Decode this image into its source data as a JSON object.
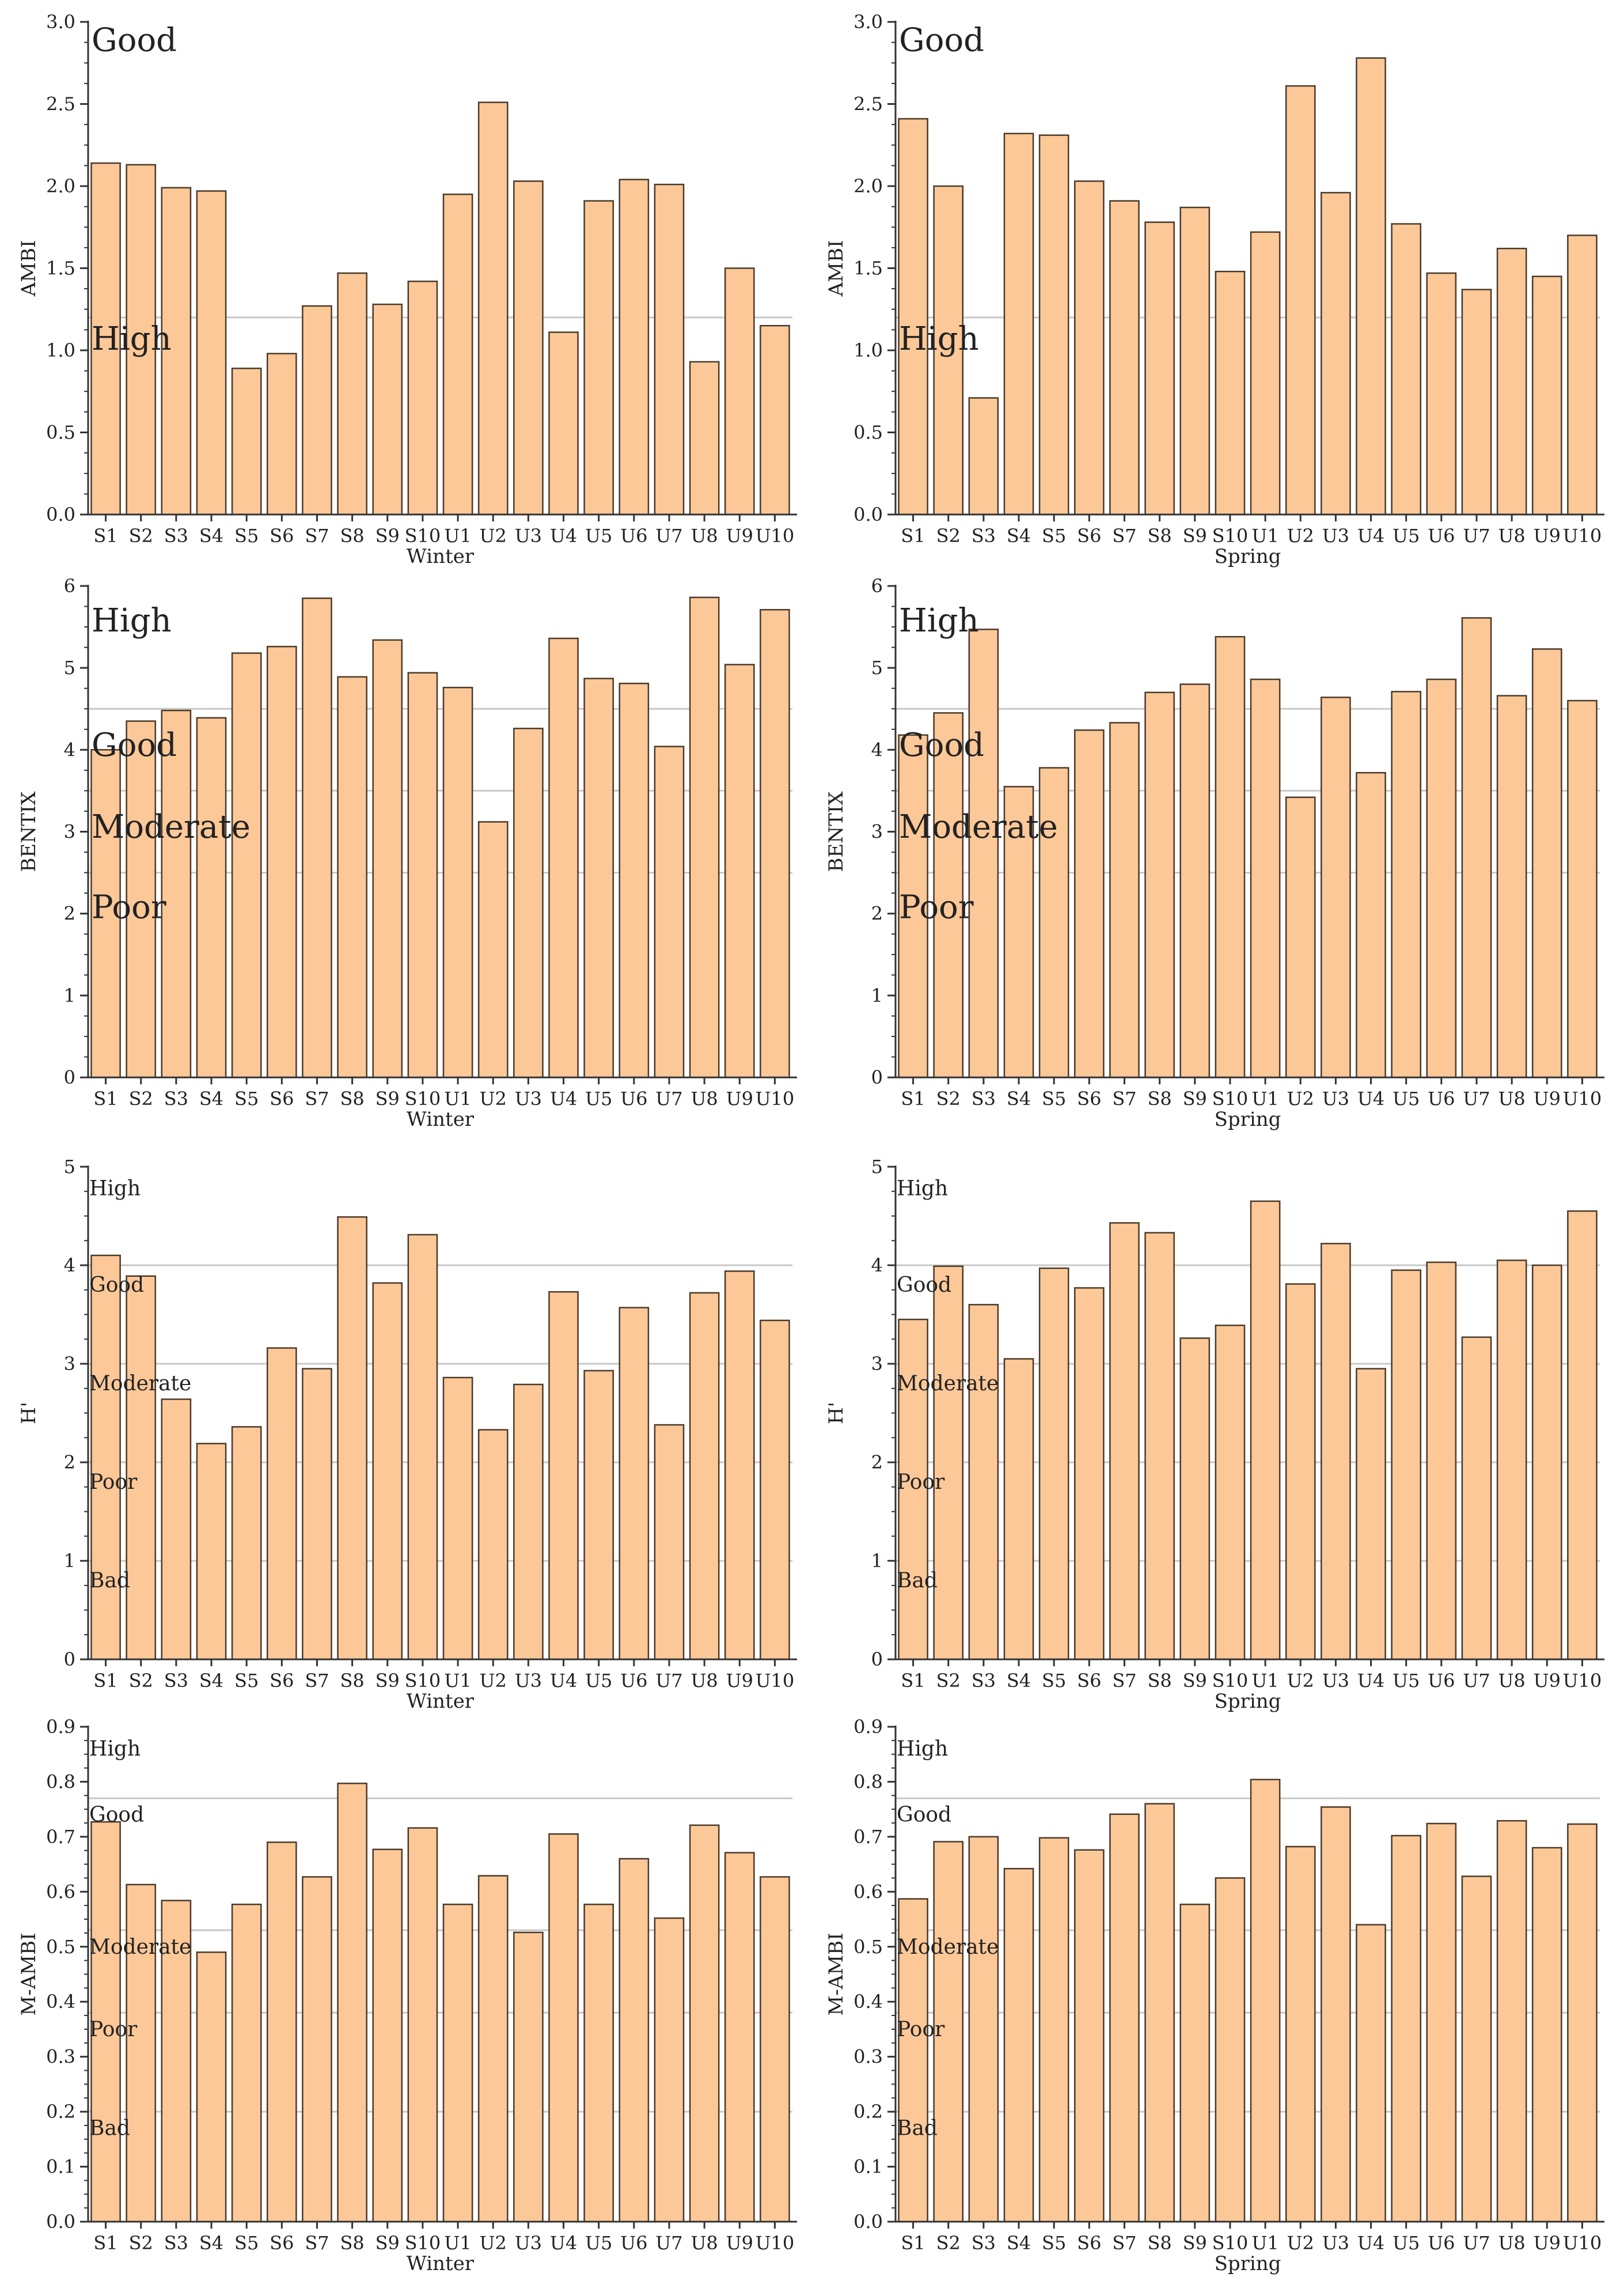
{
  "colors": {
    "bar_fill": "#fcc898",
    "bar_stroke": "#4a3a2a",
    "axis": "#333333",
    "threshold_line": "#c8c8c8",
    "text": "#222222"
  },
  "chart_data": [
    {
      "type": "bar",
      "id": "ambi-winter",
      "ylabel": "AMBI",
      "xlabel": "Winter",
      "ylim": [
        0,
        3
      ],
      "yticks": [
        "0.0",
        "0.5",
        "1.0",
        "1.5",
        "2.0",
        "2.5",
        "3.0"
      ],
      "categories": [
        "S1",
        "S2",
        "S3",
        "S4",
        "S5",
        "S6",
        "S7",
        "S8",
        "S9",
        "S10",
        "U1",
        "U2",
        "U3",
        "U4",
        "U5",
        "U6",
        "U7",
        "U8",
        "U9",
        "U10"
      ],
      "values": [
        2.14,
        2.13,
        1.99,
        1.97,
        0.89,
        0.98,
        1.27,
        1.47,
        1.28,
        1.42,
        1.95,
        2.51,
        2.03,
        1.11,
        1.91,
        2.04,
        2.01,
        0.93,
        1.5,
        1.15
      ],
      "thresholds": [
        1.2
      ],
      "bands": [
        {
          "label": "Good",
          "value": 2.9,
          "size": "large"
        },
        {
          "label": "High",
          "value": 1.08,
          "size": "large"
        }
      ]
    },
    {
      "type": "bar",
      "id": "ambi-spring",
      "ylabel": "AMBI",
      "xlabel": "Spring",
      "ylim": [
        0,
        3
      ],
      "yticks": [
        "0.0",
        "0.5",
        "1.0",
        "1.5",
        "2.0",
        "2.5",
        "3.0"
      ],
      "categories": [
        "S1",
        "S2",
        "S3",
        "S4",
        "S5",
        "S6",
        "S7",
        "S8",
        "S9",
        "S10",
        "U1",
        "U2",
        "U3",
        "U4",
        "U5",
        "U6",
        "U7",
        "U8",
        "U9",
        "U10"
      ],
      "values": [
        2.41,
        2.0,
        0.71,
        2.32,
        2.31,
        2.03,
        1.91,
        1.78,
        1.87,
        1.48,
        1.72,
        2.61,
        1.96,
        2.78,
        1.77,
        1.47,
        1.37,
        1.62,
        1.45,
        1.7
      ],
      "thresholds": [
        1.2
      ],
      "bands": [
        {
          "label": "Good",
          "value": 2.9,
          "size": "large"
        },
        {
          "label": "High",
          "value": 1.08,
          "size": "large"
        }
      ]
    },
    {
      "type": "bar",
      "id": "bentix-winter",
      "ylabel": "BENTIX",
      "xlabel": "Winter",
      "ylim": [
        0,
        6
      ],
      "yticks": [
        "0",
        "1",
        "2",
        "3",
        "4",
        "5",
        "6"
      ],
      "categories": [
        "S1",
        "S2",
        "S3",
        "S4",
        "S5",
        "S6",
        "S7",
        "S8",
        "S9",
        "S10",
        "U1",
        "U2",
        "U3",
        "U4",
        "U5",
        "U6",
        "U7",
        "U8",
        "U9",
        "U10"
      ],
      "values": [
        4.0,
        4.35,
        4.48,
        4.39,
        5.18,
        5.26,
        5.85,
        4.89,
        5.34,
        4.94,
        4.76,
        3.12,
        4.26,
        5.36,
        4.87,
        4.81,
        4.04,
        5.86,
        5.04,
        5.71
      ],
      "thresholds": [
        4.5,
        3.5,
        2.5
      ],
      "bands": [
        {
          "label": "High",
          "value": 5.6,
          "size": "large"
        },
        {
          "label": "Good",
          "value": 4.08,
          "size": "large"
        },
        {
          "label": "Moderate",
          "value": 3.08,
          "size": "large"
        },
        {
          "label": "Poor",
          "value": 2.1,
          "size": "large"
        }
      ]
    },
    {
      "type": "bar",
      "id": "bentix-spring",
      "ylabel": "BENTIX",
      "xlabel": "Spring",
      "ylim": [
        0,
        6
      ],
      "yticks": [
        "0",
        "1",
        "2",
        "3",
        "4",
        "5",
        "6"
      ],
      "categories": [
        "S1",
        "S2",
        "S3",
        "S4",
        "S5",
        "S6",
        "S7",
        "S8",
        "S9",
        "S10",
        "U1",
        "U2",
        "U3",
        "U4",
        "U5",
        "U6",
        "U7",
        "U8",
        "U9",
        "U10"
      ],
      "values": [
        4.18,
        4.45,
        5.47,
        3.55,
        3.78,
        4.24,
        4.33,
        4.7,
        4.8,
        5.38,
        4.86,
        3.42,
        4.64,
        3.72,
        4.71,
        4.86,
        5.61,
        4.66,
        5.23,
        4.6
      ],
      "thresholds": [
        4.5,
        3.5,
        2.5
      ],
      "bands": [
        {
          "label": "High",
          "value": 5.6,
          "size": "large"
        },
        {
          "label": "Good",
          "value": 4.08,
          "size": "large"
        },
        {
          "label": "Moderate",
          "value": 3.08,
          "size": "large"
        },
        {
          "label": "Poor",
          "value": 2.1,
          "size": "large"
        }
      ]
    },
    {
      "type": "bar",
      "id": "h-winter",
      "ylabel": "H'",
      "xlabel": "Winter",
      "ylim": [
        0,
        5
      ],
      "yticks": [
        "0",
        "1",
        "2",
        "3",
        "4",
        "5"
      ],
      "categories": [
        "S1",
        "S2",
        "S3",
        "S4",
        "S5",
        "S6",
        "S7",
        "S8",
        "S9",
        "S10",
        "U1",
        "U2",
        "U3",
        "U4",
        "U5",
        "U6",
        "U7",
        "U8",
        "U9",
        "U10"
      ],
      "values": [
        4.1,
        3.89,
        2.64,
        2.19,
        2.36,
        3.16,
        2.95,
        4.49,
        3.82,
        4.31,
        2.86,
        2.33,
        2.79,
        3.73,
        2.93,
        3.57,
        2.38,
        3.72,
        3.94,
        3.44
      ],
      "thresholds": [
        4,
        3,
        2,
        1
      ],
      "bands": [
        {
          "label": "High",
          "value": 4.78,
          "size": "small"
        },
        {
          "label": "Good",
          "value": 3.8,
          "size": "small"
        },
        {
          "label": "Moderate",
          "value": 2.8,
          "size": "small"
        },
        {
          "label": "Poor",
          "value": 1.8,
          "size": "small"
        },
        {
          "label": "Bad",
          "value": 0.8,
          "size": "small"
        }
      ]
    },
    {
      "type": "bar",
      "id": "h-spring",
      "ylabel": "H'",
      "xlabel": "Spring",
      "ylim": [
        0,
        5
      ],
      "yticks": [
        "0",
        "1",
        "2",
        "3",
        "4",
        "5"
      ],
      "categories": [
        "S1",
        "S2",
        "S3",
        "S4",
        "S5",
        "S6",
        "S7",
        "S8",
        "S9",
        "S10",
        "U1",
        "U2",
        "U3",
        "U4",
        "U5",
        "U6",
        "U7",
        "U8",
        "U9",
        "U10"
      ],
      "values": [
        3.45,
        3.99,
        3.6,
        3.05,
        3.97,
        3.77,
        4.43,
        4.33,
        3.26,
        3.39,
        4.65,
        3.81,
        4.22,
        2.95,
        3.95,
        4.03,
        3.27,
        4.05,
        4.0,
        4.55
      ],
      "thresholds": [
        4,
        3,
        2,
        1
      ],
      "bands": [
        {
          "label": "High",
          "value": 4.78,
          "size": "small"
        },
        {
          "label": "Good",
          "value": 3.8,
          "size": "small"
        },
        {
          "label": "Moderate",
          "value": 2.8,
          "size": "small"
        },
        {
          "label": "Poor",
          "value": 1.8,
          "size": "small"
        },
        {
          "label": "Bad",
          "value": 0.8,
          "size": "small"
        }
      ]
    },
    {
      "type": "bar",
      "id": "mambi-winter",
      "ylabel": "M-AMBI",
      "xlabel": "Winter",
      "ylim": [
        0,
        0.9
      ],
      "yticks": [
        "0.0",
        "0.1",
        "0.2",
        "0.3",
        "0.4",
        "0.5",
        "0.6",
        "0.7",
        "0.8",
        "0.9"
      ],
      "categories": [
        "S1",
        "S2",
        "S3",
        "S4",
        "S5",
        "S6",
        "S7",
        "S8",
        "S9",
        "S10",
        "U1",
        "U2",
        "U3",
        "U4",
        "U5",
        "U6",
        "U7",
        "U8",
        "U9",
        "U10"
      ],
      "values": [
        0.727,
        0.613,
        0.584,
        0.49,
        0.577,
        0.69,
        0.627,
        0.797,
        0.677,
        0.716,
        0.577,
        0.629,
        0.526,
        0.705,
        0.577,
        0.66,
        0.552,
        0.721,
        0.671,
        0.627
      ],
      "thresholds": [
        0.77,
        0.53,
        0.38,
        0.2
      ],
      "bands": [
        {
          "label": "High",
          "value": 0.86,
          "size": "small"
        },
        {
          "label": "Good",
          "value": 0.74,
          "size": "small"
        },
        {
          "label": "Moderate",
          "value": 0.5,
          "size": "small"
        },
        {
          "label": "Poor",
          "value": 0.35,
          "size": "small"
        },
        {
          "label": "Bad",
          "value": 0.17,
          "size": "small"
        }
      ]
    },
    {
      "type": "bar",
      "id": "mambi-spring",
      "ylabel": "M-AMBI",
      "xlabel": "Spring",
      "ylim": [
        0,
        0.9
      ],
      "yticks": [
        "0.0",
        "0.1",
        "0.2",
        "0.3",
        "0.4",
        "0.5",
        "0.6",
        "0.7",
        "0.8",
        "0.9"
      ],
      "categories": [
        "S1",
        "S2",
        "S3",
        "S4",
        "S5",
        "S6",
        "S7",
        "S8",
        "S9",
        "S10",
        "U1",
        "U2",
        "U3",
        "U4",
        "U5",
        "U6",
        "U7",
        "U8",
        "U9",
        "U10"
      ],
      "values": [
        0.587,
        0.691,
        0.7,
        0.642,
        0.698,
        0.676,
        0.741,
        0.76,
        0.577,
        0.625,
        0.804,
        0.682,
        0.754,
        0.54,
        0.702,
        0.724,
        0.628,
        0.729,
        0.68,
        0.723
      ],
      "thresholds": [
        0.77,
        0.53,
        0.38,
        0.2
      ],
      "bands": [
        {
          "label": "High",
          "value": 0.86,
          "size": "small"
        },
        {
          "label": "Good",
          "value": 0.74,
          "size": "small"
        },
        {
          "label": "Moderate",
          "value": 0.5,
          "size": "small"
        },
        {
          "label": "Poor",
          "value": 0.35,
          "size": "small"
        },
        {
          "label": "Bad",
          "value": 0.17,
          "size": "small"
        }
      ]
    }
  ]
}
